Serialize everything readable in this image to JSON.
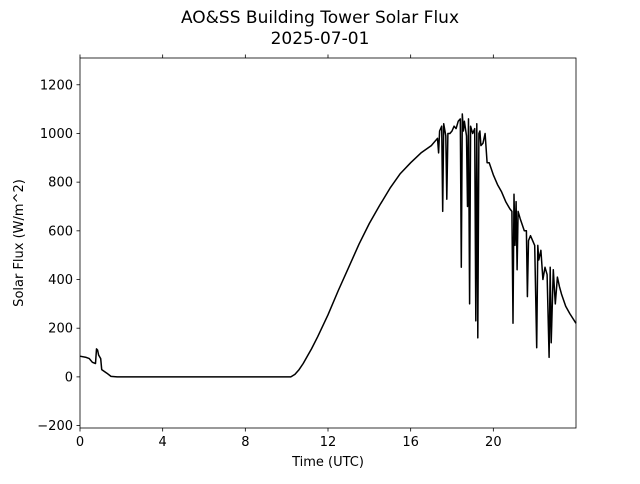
{
  "chart_data": {
    "type": "line",
    "title": "AO&SS Building Tower Solar Flux",
    "subtitle": "2025-07-01",
    "xlabel": "Time (UTC)",
    "ylabel": "Solar Flux (W/m^2)",
    "xlim": [
      0,
      24
    ],
    "ylim": [
      -210,
      1310
    ],
    "xticks": [
      0,
      4,
      8,
      12,
      16,
      20
    ],
    "xtick_labels": [
      "0",
      "4",
      "8",
      "12",
      "16",
      "20"
    ],
    "yticks": [
      -200,
      0,
      200,
      400,
      600,
      800,
      1000,
      1200
    ],
    "ytick_labels": [
      "−200",
      "0",
      "200",
      "400",
      "600",
      "800",
      "1000",
      "1200"
    ],
    "grid": false,
    "line_color": "#000000",
    "series": [
      {
        "x": [
          0,
          0.3,
          0.45,
          0.6,
          0.75,
          0.8,
          0.85,
          0.9,
          1.0,
          1.05,
          1.3,
          1.5,
          1.8,
          2.5,
          3.0,
          5.0,
          7.0,
          9.0,
          10.2,
          10.4,
          10.6,
          10.8,
          11.0,
          11.2,
          11.5,
          12.0,
          12.5,
          13.0,
          13.5,
          14.0,
          14.5,
          15.0,
          15.5,
          16.0,
          16.5,
          17.0,
          17.3,
          17.35,
          17.4,
          17.5,
          17.55,
          17.6,
          17.7,
          17.75,
          17.8,
          17.9,
          18.0,
          18.1,
          18.2,
          18.3,
          18.4,
          18.45,
          18.5,
          18.55,
          18.6,
          18.7,
          18.75,
          18.8,
          18.85,
          18.9,
          19.0,
          19.1,
          19.15,
          19.2,
          19.25,
          19.3,
          19.35,
          19.4,
          19.5,
          19.6,
          19.7,
          19.8,
          20.0,
          20.2,
          20.4,
          20.6,
          20.8,
          20.9,
          20.95,
          21.0,
          21.05,
          21.1,
          21.15,
          21.2,
          21.3,
          21.5,
          21.6,
          21.65,
          21.7,
          21.8,
          22.0,
          22.1,
          22.15,
          22.2,
          22.3,
          22.4,
          22.5,
          22.6,
          22.7,
          22.75,
          22.8,
          22.9,
          23.0,
          23.1,
          23.2,
          23.3,
          23.5,
          23.7,
          24.0
        ],
        "y": [
          85,
          80,
          75,
          60,
          55,
          115,
          110,
          90,
          75,
          30,
          15,
          2,
          0,
          0,
          0,
          0,
          0,
          0,
          0,
          10,
          30,
          55,
          85,
          115,
          165,
          255,
          355,
          450,
          545,
          630,
          705,
          775,
          835,
          880,
          920,
          950,
          980,
          920,
          1010,
          1030,
          680,
          1040,
          990,
          730,
          1000,
          1000,
          1010,
          1030,
          1020,
          1050,
          1060,
          450,
          1080,
          1010,
          1050,
          990,
          700,
          1060,
          300,
          1030,
          1000,
          1020,
          230,
          1040,
          160,
          1000,
          1010,
          950,
          960,
          1000,
          880,
          880,
          830,
          790,
          760,
          720,
          690,
          680,
          220,
          750,
          540,
          720,
          440,
          680,
          650,
          600,
          600,
          330,
          560,
          580,
          540,
          120,
          540,
          480,
          520,
          400,
          450,
          420,
          80,
          450,
          140,
          440,
          300,
          410,
          370,
          340,
          290,
          260,
          220
        ]
      }
    ]
  }
}
